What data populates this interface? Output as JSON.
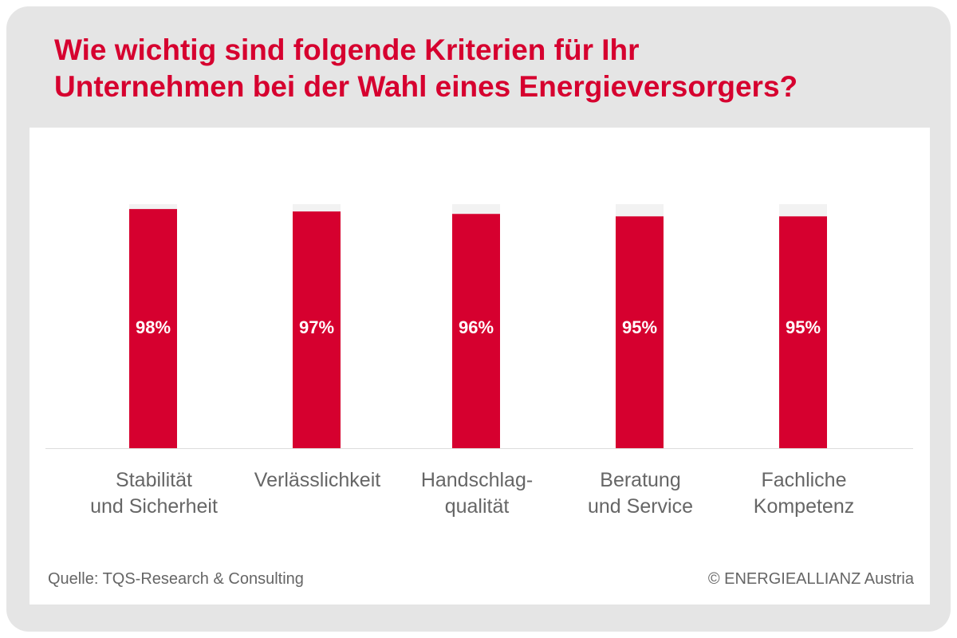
{
  "title_line1": "Wie wichtig sind folgende Kriterien für Ihr",
  "title_line2": "Unternehmen bei der Wahl eines Energieversorgers?",
  "footer": {
    "source": "Quelle: TQS-Research & Consulting",
    "copyright": "© ENERGIEALLIANZ Austria"
  },
  "colors": {
    "accent": "#d6002f",
    "bar_background": "#f2f2f2",
    "frame": "#e5e5e5",
    "label": "#666666"
  },
  "chart_data": {
    "type": "bar",
    "title": "Wie wichtig sind folgende Kriterien für Ihr Unternehmen bei der Wahl eines Energieversorgers?",
    "categories": [
      [
        "Stabilität",
        "und Sicherheit"
      ],
      [
        "Verlässlichkeit"
      ],
      [
        "Handschlag-",
        "qualität"
      ],
      [
        "Beratung",
        "und Service"
      ],
      [
        "Fachliche",
        "Kompetenz"
      ]
    ],
    "values": [
      98,
      97,
      96,
      95,
      95
    ],
    "value_labels": [
      "98%",
      "97%",
      "96%",
      "95%",
      "95%"
    ],
    "ylim": [
      0,
      100
    ],
    "xlabel": "",
    "ylabel": "",
    "grid": false,
    "legend": "none"
  }
}
